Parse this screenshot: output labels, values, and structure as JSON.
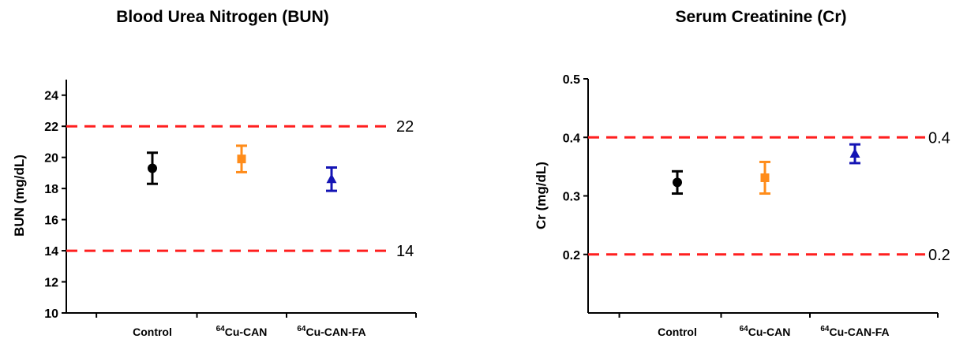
{
  "chart_data": [
    {
      "type": "scatter",
      "title": "Blood Urea Nitrogen (BUN)",
      "ylabel": "BUN (mg/dL)",
      "ylim": [
        10,
        25
      ],
      "yticks": [
        10,
        12,
        14,
        16,
        18,
        20,
        22,
        24
      ],
      "categories": [
        {
          "sup": "",
          "text": "Control"
        },
        {
          "sup": "64",
          "text": "Cu-CAN"
        },
        {
          "sup": "64",
          "text": "Cu-CAN-FA"
        }
      ],
      "series": [
        {
          "category": "Control",
          "value": 19.3,
          "error": 1.0,
          "marker": "circle",
          "color": "#000000"
        },
        {
          "category": "64Cu-CAN",
          "value": 19.9,
          "error": 0.85,
          "marker": "square",
          "color": "#FF8C1A"
        },
        {
          "category": "64Cu-CAN-FA",
          "value": 18.6,
          "error": 0.75,
          "marker": "triangle",
          "color": "#1414B4"
        }
      ],
      "reference_lines": [
        {
          "value": 22,
          "label": "22",
          "color": "#FF1F1F"
        },
        {
          "value": 14,
          "label": "14",
          "color": "#FF1F1F"
        }
      ],
      "grid": false
    },
    {
      "type": "scatter",
      "title": "Serum Creatinine (Cr)",
      "ylabel": "Cr (mg/dL)",
      "ylim": [
        0.1,
        0.5
      ],
      "yticks": [
        0.2,
        0.3,
        0.4,
        0.5
      ],
      "categories": [
        {
          "sup": "",
          "text": "Control"
        },
        {
          "sup": "64",
          "text": "Cu-CAN"
        },
        {
          "sup": "64",
          "text": "Cu-CAN-FA"
        }
      ],
      "series": [
        {
          "category": "Control",
          "value": 0.323,
          "error": 0.019,
          "marker": "circle",
          "color": "#000000"
        },
        {
          "category": "64Cu-CAN",
          "value": 0.331,
          "error": 0.027,
          "marker": "square",
          "color": "#FF8C1A"
        },
        {
          "category": "64Cu-CAN-FA",
          "value": 0.372,
          "error": 0.016,
          "marker": "triangle",
          "color": "#1414B4"
        }
      ],
      "reference_lines": [
        {
          "value": 0.4,
          "label": "0.4",
          "color": "#FF1F1F"
        },
        {
          "value": 0.2,
          "label": "0.2",
          "color": "#FF1F1F"
        }
      ],
      "grid": false
    }
  ]
}
